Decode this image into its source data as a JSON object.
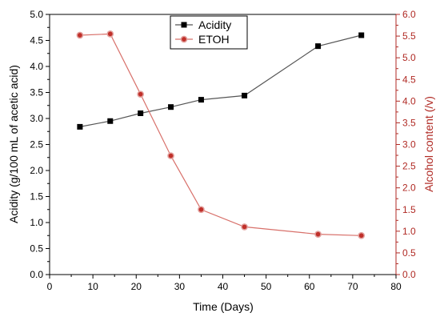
{
  "chart_data": {
    "type": "line",
    "title": "",
    "xlabel": "Time (Days)",
    "ylabel_left": "Acidity (g/100 mL of acetic acid)",
    "ylabel_right": "Alcohol content (/v)",
    "xlim": [
      0,
      80
    ],
    "ylim_left": [
      0.0,
      5.0
    ],
    "ylim_right": [
      0.0,
      6.0
    ],
    "x_ticks": [
      "0",
      "10",
      "20",
      "30",
      "40",
      "50",
      "60",
      "70",
      "80"
    ],
    "y_left_ticks": [
      "0.0",
      "0.5",
      "1.0",
      "1.5",
      "2.0",
      "2.5",
      "3.0",
      "3.5",
      "4.0",
      "4.5",
      "5.0"
    ],
    "y_right_ticks": [
      "0.0",
      "0.5",
      "1.0",
      "1.5",
      "2.0",
      "2.5",
      "3.0",
      "3.5",
      "4.0",
      "4.5",
      "5.0",
      "5.5",
      "6.0"
    ],
    "grid": false,
    "legend_position": "top-center",
    "series": [
      {
        "name": "Acidity",
        "axis": "left",
        "marker": "square",
        "color": "#000000",
        "line_color": "#555555",
        "x": [
          7,
          14,
          21,
          28,
          35,
          45,
          62,
          72
        ],
        "values": [
          2.84,
          2.95,
          3.1,
          3.22,
          3.36,
          3.44,
          4.39,
          4.6
        ]
      },
      {
        "name": "ETOH",
        "axis": "right",
        "marker": "circle",
        "color": "#c0302a",
        "line_color": "#d8706a",
        "x": [
          7,
          14,
          21,
          28,
          35,
          45,
          62,
          72
        ],
        "values": [
          5.52,
          5.55,
          4.16,
          2.74,
          1.5,
          1.1,
          0.93,
          0.9
        ]
      }
    ]
  }
}
